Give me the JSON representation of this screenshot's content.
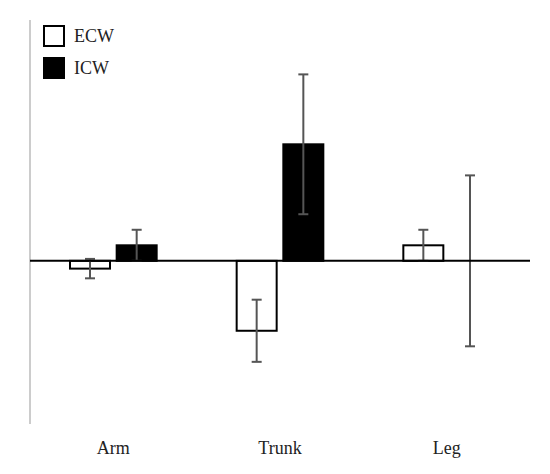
{
  "chart_data": {
    "type": "bar",
    "categories": [
      "Arm",
      "Trunk",
      "Leg"
    ],
    "series": [
      {
        "name": "ECW",
        "color": "#ffffff",
        "values": [
          -0.02,
          -0.18,
          0.04
        ],
        "errors": [
          0.025,
          0.08,
          0.04
        ]
      },
      {
        "name": "ICW",
        "color": "#000000",
        "values": [
          0.04,
          0.3,
          0.0
        ],
        "errors": [
          0.04,
          0.18,
          0.22
        ]
      }
    ],
    "ylim": [
      -0.42,
      0.62
    ],
    "tick_labels": "x",
    "legend": "upper left"
  }
}
